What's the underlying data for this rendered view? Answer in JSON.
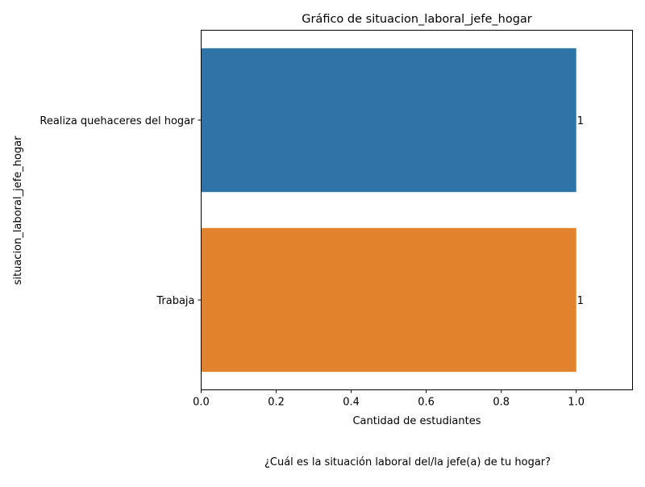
{
  "chart_data": {
    "type": "bar",
    "orientation": "horizontal",
    "title": "Gráfico de situacion_laboral_jefe_hogar",
    "xlabel": "Cantidad de estudiantes",
    "ylabel": "situacion_laboral_jefe_hogar",
    "categories": [
      "Realiza quehaceres del hogar",
      "Trabaja"
    ],
    "values": [
      1,
      1
    ],
    "data_labels": [
      "1",
      "1"
    ],
    "colors": [
      "#2f74a6",
      "#e2822d"
    ],
    "xlim": [
      0,
      1.15
    ],
    "xticks": [
      "0.0",
      "0.2",
      "0.4",
      "0.6",
      "0.8",
      "1.0"
    ],
    "grid": false,
    "legend": "none"
  },
  "caption": "¿Cuál es la situación laboral del/la jefe(a) de tu hogar?"
}
